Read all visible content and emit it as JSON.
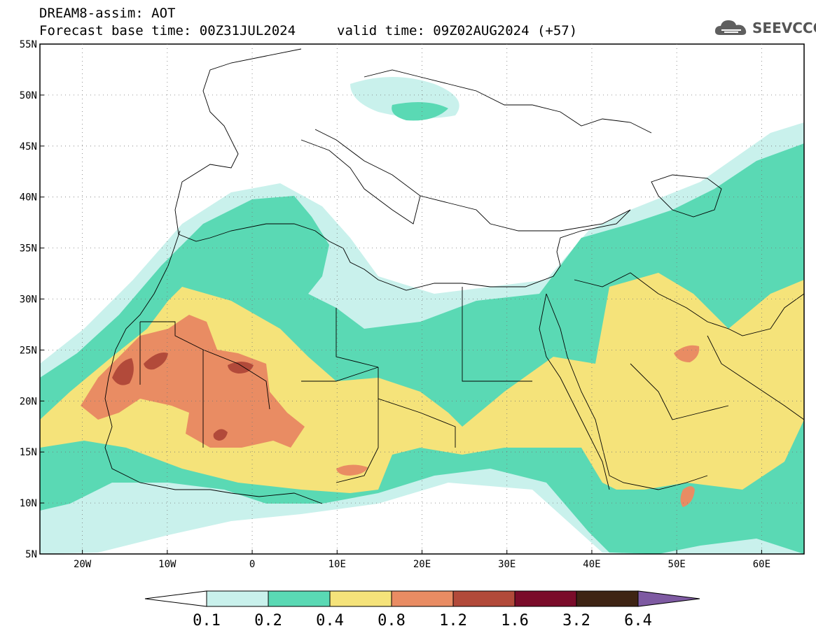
{
  "header": {
    "title": "DREAM8-assim: AOT",
    "base_time": "Forecast base time: 00Z31JUL2024",
    "valid_time": "valid time: 09Z02AUG2024 (+57)"
  },
  "logo": {
    "text": "SEEVCCC",
    "icon": "cloud-icon"
  },
  "axes": {
    "lat_labels": [
      "55N",
      "50N",
      "45N",
      "40N",
      "35N",
      "30N",
      "25N",
      "20N",
      "15N",
      "10N",
      "5N"
    ],
    "lat_values": [
      55,
      50,
      45,
      40,
      35,
      30,
      25,
      20,
      15,
      10,
      5
    ],
    "lon_labels": [
      "20W",
      "10W",
      "0",
      "10E",
      "20E",
      "30E",
      "40E",
      "50E",
      "60E"
    ],
    "lon_values": [
      -20,
      -10,
      0,
      10,
      20,
      30,
      40,
      50,
      60
    ],
    "lon_range": [
      -25,
      65
    ],
    "lat_range": [
      5,
      55
    ],
    "grid": "dotted"
  },
  "colorbar": {
    "levels": [
      "0.1",
      "0.2",
      "0.4",
      "0.8",
      "1.2",
      "1.6",
      "3.2",
      "6.4"
    ],
    "colors": [
      "#c9f1ec",
      "#5ad9b4",
      "#f5e37a",
      "#e98c63",
      "#b24a3a",
      "#7a0c2a",
      "#3e2414",
      "#7e5aa2"
    ]
  }
}
